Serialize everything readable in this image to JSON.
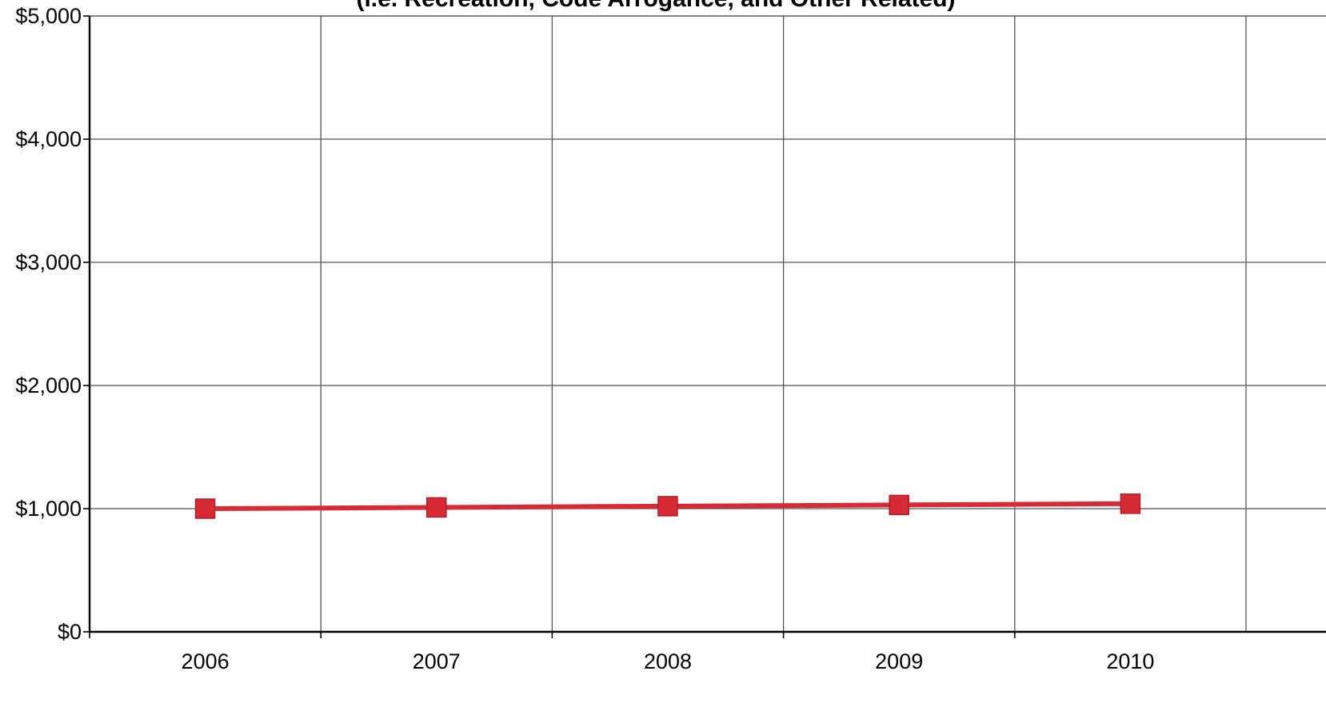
{
  "chart_data": {
    "type": "line",
    "title": "(i.e. Recreation, Code Arrogance, and Other Related)",
    "xlabel": "",
    "ylabel": "",
    "categories": [
      "2006",
      "2007",
      "2008",
      "2009",
      "2010"
    ],
    "series": [
      {
        "values": [
          1000,
          1010,
          1020,
          1030,
          1040
        ],
        "color": "#d62b35",
        "marker": "square"
      }
    ],
    "y_ticks": [
      "$0",
      "$1,000",
      "$2,000",
      "$3,000",
      "$4,000",
      "$5,000"
    ],
    "ylim": [
      0,
      5000
    ],
    "grid": true,
    "legend": "none"
  }
}
